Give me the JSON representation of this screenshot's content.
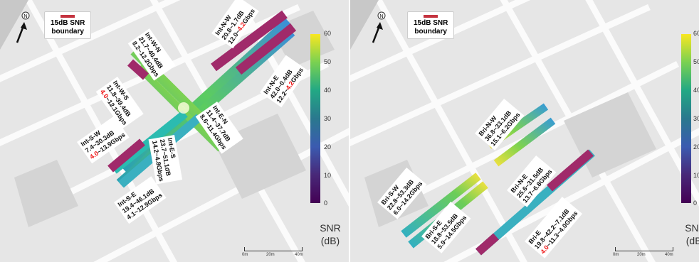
{
  "legend": {
    "line1": "15dB SNR",
    "line2": "boundary",
    "line_color": "#c4333f"
  },
  "colorbar": {
    "ticks": [
      "60",
      "50",
      "40",
      "30",
      "20",
      "10",
      "0"
    ],
    "title_line1": "SNR",
    "title_line2": "(dB)",
    "colors": [
      "#f9e721",
      "#7ad151",
      "#22a884",
      "#2a788e",
      "#3b5bb0",
      "#482878",
      "#440154"
    ]
  },
  "scale_bar": {
    "labels": [
      "0m",
      "20m",
      "40m"
    ]
  },
  "left_panel": {
    "annotations": {
      "n_w": {
        "name": "Int-N-W",
        "snr": "20.8~1.7dB",
        "rate_a": "12.0~",
        "rate_red": "4.2",
        "rate_b": "Gbps"
      },
      "n_e": {
        "name": "Int-N-E",
        "snr": "42.0~0.4dB",
        "rate_a": "12.2~",
        "rate_red": "4.2",
        "rate_b": "Gbps"
      },
      "w_n": {
        "name": "Int-W-N",
        "snr": "21.7~40.4dB",
        "rate_a": "8.2~12.2Gbps",
        "rate_red": "",
        "rate_b": ""
      },
      "w_s": {
        "name": "Int-W-S",
        "snr": "11.8~39.4dB",
        "rate_a": "",
        "rate_red": "4.0",
        "rate_b": "~12.1Gbps"
      },
      "e_n": {
        "name": "Int-E-N",
        "snr": "11.4~37.7dB",
        "rate_a": "8.6~11.4Gbps",
        "rate_red": "",
        "rate_b": ""
      },
      "s_w": {
        "name": "Int-S-W",
        "snr": "7.4~30.3dB",
        "rate_a": "",
        "rate_red": "4.0",
        "rate_b": "~13.9Gbps"
      },
      "s_e": {
        "name": "Int-S-E",
        "snr": "19.4~46.1dB",
        "rate_a": "4.1~12.9Gbps",
        "rate_red": "",
        "rate_b": ""
      },
      "e_s": {
        "name": "Int-E-S",
        "snr": "23.7~51.1dB",
        "rate_a": "14.2~4.8Gbps",
        "rate_red": "",
        "rate_b": ""
      }
    }
  },
  "right_panel": {
    "annotations": {
      "b_n_w": {
        "name": "Bri-N-W",
        "snr": "36.8~33.1dB",
        "rate_a": "15.1~6.2Gbps",
        "rate_red": "",
        "rate_b": ""
      },
      "b_n_e": {
        "name": "Bri-N-E",
        "snr": "25.6~31.5dB",
        "rate_a": "13.7~6.8Gbps",
        "rate_red": "",
        "rate_b": ""
      },
      "b_s_w": {
        "name": "Bri-S-W",
        "snr": "22.8~53.3dB",
        "rate_a": "6.0~14.2Gbps",
        "rate_red": "",
        "rate_b": ""
      },
      "b_s_e": {
        "name": "Bri-S-E",
        "snr": "18.8~53.5dB",
        "rate_a": "5.9~14.5Gbps",
        "rate_red": "",
        "rate_b": ""
      },
      "b_e": {
        "name": "Bri-E",
        "snr": "19.8~42.2~7.1dB",
        "rate_a": "",
        "rate_red": "4.0",
        "rate_b": "~11.3~4.0Gbps"
      }
    }
  }
}
